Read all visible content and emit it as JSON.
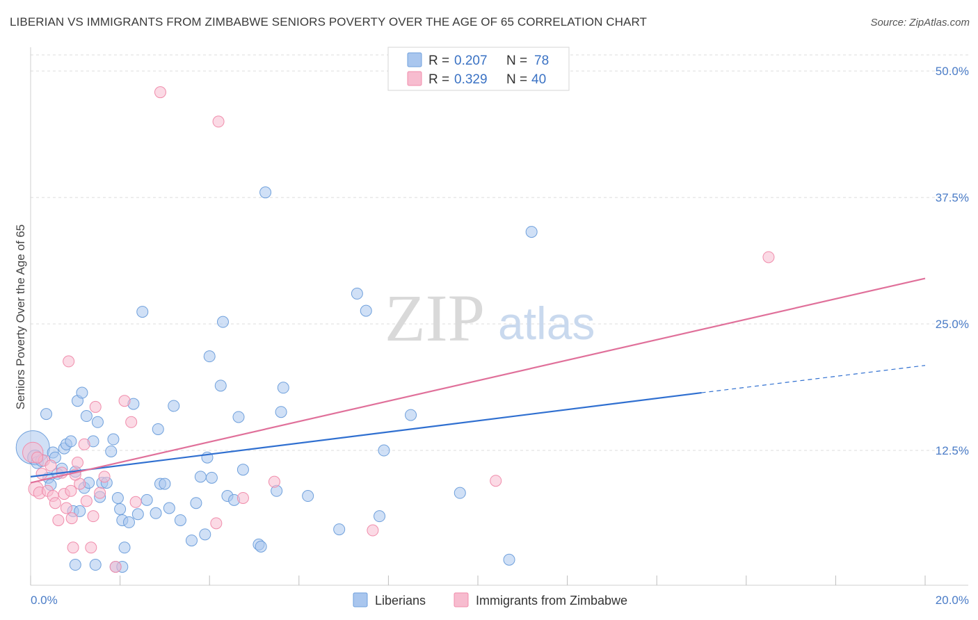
{
  "header": {
    "title": "LIBERIAN VS IMMIGRANTS FROM ZIMBABWE SENIORS POVERTY OVER THE AGE OF 65 CORRELATION CHART",
    "source": "Source: ZipAtlas.com"
  },
  "watermark": {
    "zip": "ZIP",
    "atlas": "atlas"
  },
  "legend": {
    "rows": [
      {
        "r_label": "R =",
        "r_value": "0.207",
        "n_label": "N =",
        "n_value": "78",
        "color": "#6fa0dc"
      },
      {
        "r_label": "R =",
        "r_value": "0.329",
        "n_label": "N =",
        "n_value": "40",
        "color": "#f08cab"
      }
    ]
  },
  "colors": {
    "blue_fill": "#a9c6ee",
    "blue_stroke": "#6fa0dc",
    "blue_line": "#2f6fd0",
    "pink_fill": "#f7bccf",
    "pink_stroke": "#f08cab",
    "pink_line": "#e0709a",
    "tick_text": "#4a7cc7",
    "grid": "#dcdcdc"
  },
  "chart_data": {
    "type": "scatter",
    "title": "LIBERIAN VS IMMIGRANTS FROM ZIMBABWE SENIORS POVERTY OVER THE AGE OF 65 CORRELATION CHART",
    "xlabel": "",
    "ylabel": "Seniors Poverty Over the Age of 65",
    "xlim": [
      0,
      20
    ],
    "ylim": [
      0,
      52
    ],
    "x_tick_labels": [
      {
        "value": 0,
        "label": "0.0%"
      },
      {
        "value": 20,
        "label": "20.0%"
      }
    ],
    "y_tick_labels": [
      {
        "value": 12.5,
        "label": "12.5%"
      },
      {
        "value": 25,
        "label": "25.0%"
      },
      {
        "value": 37.5,
        "label": "37.5%"
      },
      {
        "value": 50,
        "label": "50.0%"
      }
    ],
    "grid": true,
    "legend_position": "top-center",
    "series": [
      {
        "name": "Liberians",
        "color": "#6fa0dc",
        "points": [
          [
            0.05,
            12.8
          ],
          [
            0.1,
            11.8
          ],
          [
            0.15,
            11.3
          ],
          [
            0.25,
            11.5
          ],
          [
            0.35,
            16.1
          ],
          [
            0.4,
            9.8
          ],
          [
            0.45,
            9.1
          ],
          [
            0.5,
            12.3
          ],
          [
            0.55,
            11.8
          ],
          [
            0.6,
            10.2
          ],
          [
            0.7,
            10.7
          ],
          [
            0.75,
            12.7
          ],
          [
            0.8,
            13.1
          ],
          [
            0.9,
            13.4
          ],
          [
            0.95,
            6.5
          ],
          [
            1.0,
            10.4
          ],
          [
            1.05,
            17.4
          ],
          [
            1.1,
            6.5
          ],
          [
            1.15,
            18.2
          ],
          [
            1.2,
            8.8
          ],
          [
            1.25,
            15.9
          ],
          [
            1.3,
            9.3
          ],
          [
            1.4,
            13.4
          ],
          [
            1.5,
            15.3
          ],
          [
            1.55,
            7.9
          ],
          [
            1.6,
            9.3
          ],
          [
            1.7,
            9.3
          ],
          [
            1.8,
            12.4
          ],
          [
            1.85,
            13.6
          ],
          [
            1.95,
            7.8
          ],
          [
            2.0,
            6.7
          ],
          [
            2.05,
            5.6
          ],
          [
            2.1,
            2.9
          ],
          [
            2.2,
            5.4
          ],
          [
            2.3,
            17.1
          ],
          [
            2.4,
            6.2
          ],
          [
            2.5,
            26.2
          ],
          [
            2.6,
            7.6
          ],
          [
            2.8,
            6.3
          ],
          [
            2.85,
            14.6
          ],
          [
            2.9,
            9.2
          ],
          [
            3.0,
            9.2
          ],
          [
            3.1,
            6.8
          ],
          [
            3.2,
            16.9
          ],
          [
            3.35,
            5.6
          ],
          [
            3.6,
            3.6
          ],
          [
            3.7,
            7.3
          ],
          [
            3.8,
            9.9
          ],
          [
            3.9,
            4.2
          ],
          [
            3.95,
            11.8
          ],
          [
            4.0,
            21.8
          ],
          [
            4.05,
            9.8
          ],
          [
            4.25,
            18.9
          ],
          [
            4.3,
            25.2
          ],
          [
            4.4,
            8.0
          ],
          [
            4.55,
            7.6
          ],
          [
            4.65,
            15.8
          ],
          [
            4.75,
            10.6
          ],
          [
            5.1,
            3.2
          ],
          [
            5.15,
            3.0
          ],
          [
            5.25,
            38.0
          ],
          [
            5.5,
            8.5
          ],
          [
            5.6,
            16.3
          ],
          [
            5.65,
            18.7
          ],
          [
            6.2,
            8.0
          ],
          [
            6.9,
            4.7
          ],
          [
            7.3,
            28.0
          ],
          [
            7.5,
            26.3
          ],
          [
            7.8,
            6.0
          ],
          [
            7.9,
            12.5
          ],
          [
            8.5,
            16.0
          ],
          [
            9.6,
            8.3
          ],
          [
            10.7,
            1.7
          ],
          [
            11.2,
            34.1
          ],
          [
            1.0,
            1.2
          ],
          [
            1.45,
            1.2
          ],
          [
            1.9,
            1.0
          ],
          [
            2.05,
            1.0
          ]
        ],
        "sizes": [
          36,
          16,
          13,
          13,
          12,
          12,
          12,
          12,
          12,
          12,
          12,
          12,
          12,
          12,
          12,
          12,
          12,
          12,
          12,
          12,
          12,
          12,
          12,
          12,
          12,
          12,
          12,
          12,
          12,
          12,
          12,
          12,
          12,
          12,
          12,
          12,
          12,
          12,
          12,
          12,
          12,
          12,
          12,
          12,
          12,
          12,
          12,
          12,
          12,
          12,
          12,
          12,
          12,
          12,
          12,
          12,
          12,
          12,
          12,
          12,
          12,
          12,
          12,
          12,
          12,
          12,
          12,
          12,
          12,
          12,
          12,
          12,
          12,
          12,
          12,
          12,
          12,
          12
        ]
      },
      {
        "name": "Immigrants from Zimbabwe",
        "color": "#f08cab",
        "points": [
          [
            0.05,
            12.3
          ],
          [
            0.12,
            8.7
          ],
          [
            0.2,
            8.3
          ],
          [
            0.25,
            10.2
          ],
          [
            0.3,
            11.5
          ],
          [
            0.38,
            8.5
          ],
          [
            0.45,
            11.0
          ],
          [
            0.5,
            8.0
          ],
          [
            0.55,
            7.3
          ],
          [
            0.62,
            5.6
          ],
          [
            0.7,
            10.3
          ],
          [
            0.75,
            8.2
          ],
          [
            0.8,
            6.8
          ],
          [
            0.85,
            21.3
          ],
          [
            0.9,
            8.5
          ],
          [
            0.92,
            5.8
          ],
          [
            0.95,
            2.9
          ],
          [
            1.05,
            11.3
          ],
          [
            1.1,
            9.2
          ],
          [
            1.2,
            13.1
          ],
          [
            1.25,
            7.5
          ],
          [
            1.35,
            2.9
          ],
          [
            1.4,
            6.0
          ],
          [
            1.45,
            16.8
          ],
          [
            1.55,
            8.3
          ],
          [
            1.65,
            9.9
          ],
          [
            1.9,
            1.0
          ],
          [
            2.1,
            17.4
          ],
          [
            2.25,
            15.3
          ],
          [
            2.35,
            7.4
          ],
          [
            2.9,
            47.9
          ],
          [
            4.15,
            5.3
          ],
          [
            4.2,
            45.0
          ],
          [
            4.75,
            7.8
          ],
          [
            5.45,
            9.4
          ],
          [
            7.65,
            4.6
          ],
          [
            10.4,
            9.5
          ],
          [
            16.5,
            31.6
          ],
          [
            0.15,
            11.8
          ],
          [
            1.0,
            10.1
          ]
        ],
        "sizes": [
          22,
          16,
          13,
          12,
          12,
          12,
          12,
          12,
          12,
          12,
          12,
          12,
          12,
          12,
          12,
          12,
          12,
          12,
          12,
          12,
          12,
          12,
          12,
          12,
          12,
          12,
          12,
          12,
          12,
          12,
          12,
          12,
          12,
          12,
          12,
          12,
          12,
          12,
          12,
          12
        ]
      }
    ],
    "trend_lines": [
      {
        "series": "Liberians",
        "x_start": 0,
        "y_start": 9.9,
        "x_solid_end": 15.0,
        "y_solid_end": 18.2,
        "x_end": 20,
        "y_end": 20.9,
        "dashed_extension": true
      },
      {
        "series": "Immigrants from Zimbabwe",
        "x_start": 0,
        "y_start": 9.3,
        "x_end": 20,
        "y_end": 29.5,
        "dashed_extension": false
      }
    ]
  },
  "bottom_legend": {
    "items": [
      {
        "label": "Liberians",
        "color": "#6fa0dc"
      },
      {
        "label": "Immigrants from Zimbabwe",
        "color": "#f08cab"
      }
    ]
  }
}
